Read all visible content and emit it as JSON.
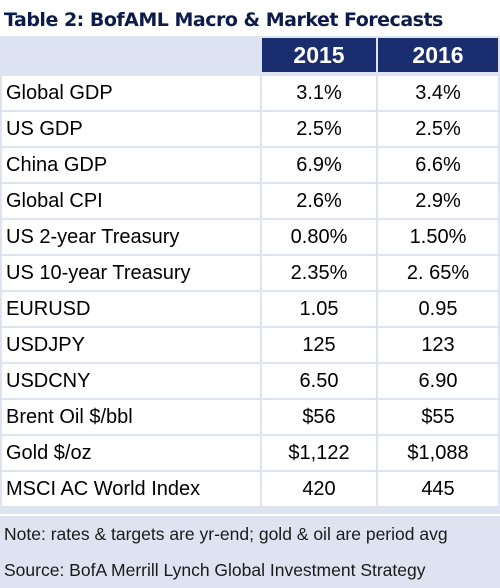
{
  "title": "Table 2: BofAML Macro & Market Forecasts",
  "columns": [
    "2015",
    "2016"
  ],
  "rows": [
    {
      "label": "Global GDP",
      "y2015": "3.1%",
      "y2016": "3.4%"
    },
    {
      "label": "US GDP",
      "y2015": "2.5%",
      "y2016": "2.5%"
    },
    {
      "label": "China GDP",
      "y2015": "6.9%",
      "y2016": "6.6%"
    },
    {
      "label": "Global CPI",
      "y2015": "2.6%",
      "y2016": "2.9%"
    },
    {
      "label": "US 2-year Treasury",
      "y2015": "0.80%",
      "y2016": "1.50%"
    },
    {
      "label": "US 10-year Treasury",
      "y2015": "2.35%",
      "y2016": "2. 65%"
    },
    {
      "label": "EURUSD",
      "y2015": "1.05",
      "y2016": "0.95"
    },
    {
      "label": "USDJPY",
      "y2015": "125",
      "y2016": "123"
    },
    {
      "label": "USDCNY",
      "y2015": "6.50",
      "y2016": "6.90"
    },
    {
      "label": "Brent Oil $/bbl",
      "y2015": "$56",
      "y2016": "$55"
    },
    {
      "label": "Gold $/oz",
      "y2015": "$1,122",
      "y2016": "$1,088"
    },
    {
      "label": "MSCI AC World Index",
      "y2015": "420",
      "y2016": "445"
    }
  ],
  "note": "Note: rates & targets are yr-end; gold & oil are period avg",
  "source": "Source: BofA Merrill Lynch Global Investment Strategy",
  "colors": {
    "title": "#0d1b4c",
    "header_bg": "#1a2d6e",
    "grid_bg": "#dde3f1"
  }
}
